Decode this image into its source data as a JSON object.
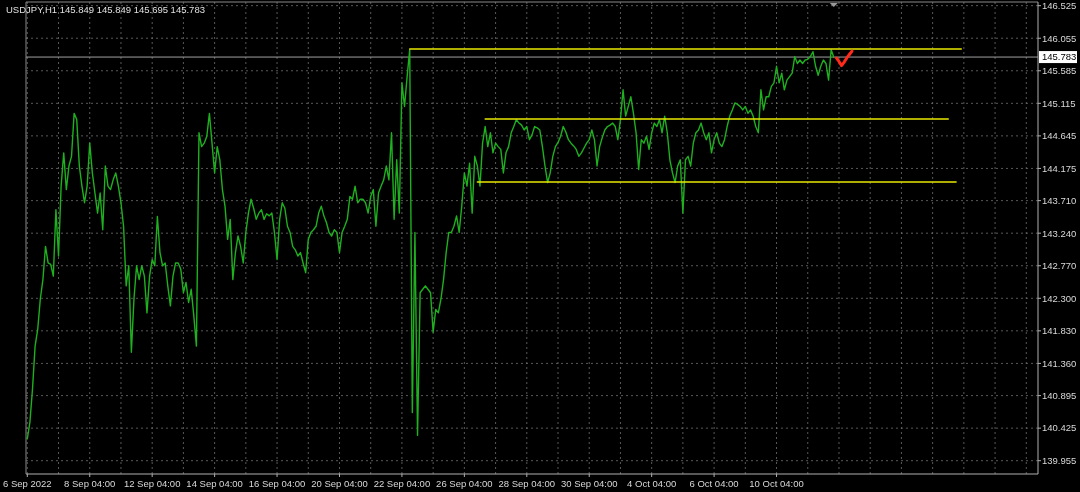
{
  "chart_data": {
    "type": "line",
    "title": "USDJPY,H1 145.849 145.849 145.695 145.783",
    "categories": [
      "6 Sep 2022",
      null,
      null,
      null,
      null,
      null,
      null,
      null,
      null,
      null,
      null,
      null,
      null,
      null,
      null,
      null,
      null,
      null,
      null,
      null,
      null,
      null,
      null,
      null,
      "8 Sep 04:00",
      null,
      null,
      null,
      null,
      null,
      null,
      null,
      null,
      null,
      null,
      null,
      null,
      null,
      null,
      null,
      null,
      null,
      null,
      null,
      null,
      null,
      null,
      null,
      "12 Sep 04:00",
      null,
      null,
      null,
      null,
      null,
      null,
      null,
      null,
      null,
      null,
      null,
      null,
      null,
      null,
      null,
      null,
      null,
      null,
      null,
      null,
      null,
      null,
      null,
      "14 Sep 04:00",
      null,
      null,
      null,
      null,
      null,
      null,
      null,
      null,
      null,
      null,
      null,
      null,
      null,
      null,
      null,
      null,
      null,
      null,
      null,
      null,
      null,
      null,
      null,
      "16 Sep 04:00",
      null,
      null,
      null,
      null,
      null,
      null,
      null,
      null,
      null,
      null,
      null,
      null,
      null,
      null,
      null,
      null,
      null,
      null,
      null,
      null,
      null,
      null,
      null,
      "20 Sep 04:00",
      null,
      null,
      null,
      null,
      null,
      null,
      null,
      null,
      null,
      null,
      null,
      null,
      null,
      null,
      null,
      null,
      null,
      null,
      null,
      null,
      null,
      null,
      null,
      "22 Sep 04:00",
      null,
      null,
      null,
      null,
      null,
      null,
      null,
      null,
      null,
      null,
      null,
      null,
      null,
      null,
      null,
      null,
      null,
      null,
      null,
      null,
      null,
      null,
      null,
      "26 Sep 04:00",
      null,
      null,
      null,
      null,
      null,
      null,
      null,
      null,
      null,
      null,
      null,
      null,
      null,
      null,
      null,
      null,
      null,
      null,
      null,
      null,
      null,
      null,
      null,
      "28 Sep 04:00",
      null,
      null,
      null,
      null,
      null,
      null,
      null,
      null,
      null,
      null,
      null,
      null,
      null,
      null,
      null,
      null,
      null,
      null,
      null,
      null,
      null,
      null,
      null,
      "30 Sep 04:00",
      null,
      null,
      null,
      null,
      null,
      null,
      null,
      null,
      null,
      null,
      null,
      null,
      null,
      null,
      null,
      null,
      null,
      null,
      null,
      null,
      null,
      null,
      null,
      "4 Oct 04:00",
      null,
      null,
      null,
      null,
      null,
      null,
      null,
      null,
      null,
      null,
      null,
      null,
      null,
      null,
      null,
      null,
      null,
      null,
      null,
      null,
      null,
      null,
      null,
      "6 Oct 04:00",
      null,
      null,
      null,
      null,
      null,
      null,
      null,
      null,
      null,
      null,
      null,
      null,
      null,
      null,
      null,
      null,
      null,
      null,
      null,
      null,
      null,
      null,
      null,
      "10 Oct 04:00",
      null,
      null,
      null,
      null,
      null,
      null,
      null,
      null,
      null,
      null,
      null,
      null,
      null,
      null,
      null,
      null,
      null,
      null,
      null,
      null,
      null,
      null,
      null,
      null,
      null,
      null,
      null,
      null,
      null,
      null,
      null,
      null,
      null,
      null,
      null,
      null,
      null,
      null,
      null,
      null,
      null,
      null,
      null,
      null,
      null,
      null,
      null,
      null,
      null,
      null,
      null,
      null,
      null,
      null,
      null,
      null,
      null,
      null,
      null,
      null,
      null,
      null,
      null,
      null,
      null,
      null,
      null,
      null,
      null,
      null,
      null,
      null,
      null,
      null,
      null,
      null,
      null,
      null,
      null,
      null,
      null,
      null,
      null,
      null,
      null,
      null,
      null,
      null,
      null,
      null,
      null,
      null,
      null,
      null,
      null,
      null,
      null,
      null,
      null,
      null
    ],
    "ylim": [
      139.763,
      146.578
    ],
    "yticks": [
      146.525,
      146.055,
      145.585,
      145.115,
      144.645,
      144.175,
      {
        "value": 143.71,
        "label": "143.710"
      },
      {
        "value": 143.24,
        "label": "143.240"
      },
      {
        "value": 142.77,
        "label": "142.770"
      },
      {
        "value": 142.3,
        "label": "142.300"
      },
      {
        "value": 141.83,
        "label": "141.830"
      },
      {
        "value": 141.36,
        "label": "141.360"
      },
      140.895,
      140.425,
      139.955
    ],
    "grid": true,
    "ref_lines": [
      {
        "axis": "y",
        "value": 145.783,
        "label": "145.783",
        "color": "#a0a0a0"
      }
    ],
    "series": [
      {
        "color": "#1fb01f",
        "values": [
          140.27,
          140.51,
          140.99,
          141.61,
          141.85,
          142.29,
          142.57,
          143.05,
          142.81,
          142.79,
          142.62,
          143.58,
          142.91,
          143.92,
          144.4,
          143.87,
          144.21,
          144.35,
          144.97,
          144.88,
          144.21,
          143.92,
          143.68,
          143.92,
          144.54,
          144.11,
          143.82,
          143.53,
          143.82,
          143.29,
          144.21,
          143.92,
          143.87,
          144.01,
          144.11,
          143.92,
          143.68,
          143.34,
          142.48,
          142.77,
          141.52,
          142.29,
          142.77,
          142.57,
          142.77,
          142.62,
          142.09,
          142.62,
          142.86,
          142.77,
          143.48,
          142.96,
          142.77,
          142.81,
          142.48,
          142.19,
          142.62,
          142.81,
          142.81,
          142.72,
          142.38,
          142.53,
          142.24,
          142.43,
          142.05,
          141.61,
          144.69,
          144.49,
          144.54,
          144.64,
          144.97,
          144.54,
          144.11,
          144.49,
          144.3,
          143.87,
          143.63,
          143.15,
          143.44,
          142.57,
          142.96,
          143.2,
          143.05,
          142.81,
          143.25,
          143.53,
          143.73,
          143.6,
          143.44,
          143.53,
          143.58,
          143.44,
          143.52,
          143.49,
          143.53,
          143.25,
          142.86,
          143.44,
          143.68,
          143.6,
          143.34,
          143.25,
          143.05,
          143.0,
          142.91,
          142.96,
          142.81,
          142.67,
          143.15,
          143.25,
          143.29,
          143.34,
          143.53,
          143.63,
          143.49,
          143.39,
          143.25,
          143.2,
          143.29,
          143.25,
          142.96,
          143.25,
          143.34,
          143.44,
          143.77,
          143.73,
          143.92,
          143.68,
          143.73,
          143.73,
          143.68,
          143.53,
          143.77,
          143.87,
          143.34,
          143.82,
          143.92,
          144.01,
          144.21,
          144.01,
          144.69,
          143.44,
          144.3,
          143.53,
          145.41,
          145.07,
          145.5,
          145.89,
          140.65,
          143.25,
          140.32,
          142.38,
          142.43,
          142.48,
          142.43,
          142.38,
          141.81,
          142.14,
          142.09,
          142.29,
          142.57,
          142.96,
          143.25,
          143.25,
          143.34,
          143.49,
          143.25,
          143.63,
          144.11,
          143.92,
          144.25,
          143.53,
          144.35,
          144.21,
          143.92,
          144.54,
          144.78,
          144.49,
          144.69,
          144.4,
          144.54,
          144.49,
          144.45,
          144.11,
          144.4,
          144.49,
          144.69,
          144.78,
          144.88,
          144.83,
          144.8,
          144.73,
          144.78,
          144.59,
          144.66,
          144.78,
          144.76,
          144.73,
          144.49,
          144.21,
          143.97,
          144.11,
          144.35,
          144.49,
          144.55,
          144.64,
          144.78,
          144.7,
          144.59,
          144.54,
          144.5,
          144.45,
          144.35,
          144.4,
          144.47,
          144.54,
          144.59,
          144.73,
          144.59,
          144.21,
          144.49,
          144.62,
          144.73,
          144.78,
          144.8,
          144.83,
          144.78,
          144.59,
          144.88,
          145.31,
          144.93,
          145.07,
          145.21,
          144.97,
          144.69,
          144.16,
          144.59,
          144.54,
          144.64,
          144.45,
          144.69,
          144.83,
          144.78,
          144.88,
          144.69,
          144.93,
          144.69,
          144.3,
          144.11,
          143.97,
          144.21,
          144.3,
          143.53,
          144.3,
          144.35,
          144.21,
          144.54,
          144.69,
          144.73,
          144.83,
          144.69,
          144.59,
          144.69,
          144.4,
          144.59,
          144.69,
          144.54,
          144.49,
          144.59,
          144.78,
          144.93,
          145.02,
          145.12,
          145.1,
          145.07,
          145.02,
          145.07,
          144.97,
          145.02,
          144.93,
          144.78,
          144.69,
          145.31,
          145.02,
          145.21,
          145.21,
          145.36,
          145.41,
          145.65,
          145.41,
          145.55,
          145.31,
          145.45,
          145.5,
          145.55,
          145.79,
          145.69,
          145.74,
          145.69,
          145.74,
          145.75,
          145.79,
          145.86,
          145.65,
          145.52,
          145.65,
          145.74,
          145.69,
          145.45,
          145.89,
          145.78,
          null,
          null,
          null,
          null,
          null,
          null,
          null,
          null,
          null,
          null,
          null,
          null,
          null,
          null,
          null,
          null,
          null,
          null,
          null,
          null,
          null,
          null,
          null,
          null,
          null,
          null,
          null,
          null,
          null,
          null,
          null,
          null,
          null,
          null,
          null,
          null,
          null,
          null,
          null,
          null,
          null,
          null,
          null,
          null,
          null,
          null,
          null,
          null,
          null,
          null,
          null,
          null,
          null,
          null,
          null,
          null,
          null,
          null,
          null,
          null,
          null,
          null,
          null,
          null,
          null,
          null,
          null,
          null,
          null,
          null,
          null,
          null,
          null,
          null,
          null,
          null,
          null,
          null
        ]
      },
      {
        "color": "#e8e800",
        "values": [
          null,
          null,
          null,
          null,
          null,
          null,
          null,
          null,
          null,
          null,
          null,
          null,
          null,
          null,
          null,
          null,
          null,
          null,
          null,
          null,
          null,
          null,
          null,
          null,
          null,
          null,
          null,
          null,
          null,
          null,
          null,
          null,
          null,
          null,
          null,
          null,
          null,
          null,
          null,
          null,
          null,
          null,
          null,
          null,
          null,
          null,
          null,
          null,
          null,
          null,
          null,
          null,
          null,
          null,
          null,
          null,
          null,
          null,
          null,
          null,
          null,
          null,
          null,
          null,
          null,
          null,
          null,
          null,
          null,
          null,
          null,
          null,
          null,
          null,
          null,
          null,
          null,
          null,
          null,
          null,
          null,
          null,
          null,
          null,
          null,
          null,
          null,
          null,
          null,
          null,
          null,
          null,
          null,
          null,
          null,
          null,
          null,
          null,
          null,
          null,
          null,
          null,
          null,
          null,
          null,
          null,
          null,
          null,
          null,
          null,
          null,
          null,
          null,
          null,
          null,
          null,
          null,
          null,
          null,
          null,
          null,
          null,
          null,
          null,
          null,
          null,
          null,
          null,
          null,
          null,
          null,
          null,
          null,
          null,
          null,
          null,
          null,
          null,
          null,
          null,
          null,
          null,
          null,
          null,
          null,
          null,
          null,
          145.9,
          145.9,
          145.9,
          145.9,
          145.9,
          145.9,
          145.9,
          145.9,
          145.9,
          145.9,
          145.9,
          145.9,
          145.9,
          145.9,
          145.9,
          145.9,
          145.9,
          145.9,
          145.9,
          145.9,
          145.9,
          145.9,
          145.9,
          145.9,
          145.9,
          145.9,
          145.9,
          145.9,
          145.9,
          145.9,
          145.9,
          145.9,
          145.9,
          145.9,
          145.9,
          145.9,
          145.9,
          145.9,
          145.9,
          145.9,
          145.9,
          145.9,
          145.9,
          145.9,
          145.9,
          145.9,
          145.9,
          145.9,
          145.9,
          145.9,
          145.9,
          145.9,
          145.9,
          145.9,
          145.9,
          145.9,
          145.9,
          145.9,
          145.9,
          145.9,
          145.9,
          145.9,
          145.9,
          145.9,
          145.9,
          145.9,
          145.9,
          145.9,
          145.9,
          145.9,
          145.9,
          145.9,
          145.9,
          145.9,
          145.9,
          145.9,
          145.9,
          145.9,
          145.9,
          145.9,
          145.9,
          145.9,
          145.9,
          145.9,
          145.9,
          145.9,
          145.9,
          145.9,
          145.9,
          145.9,
          145.9,
          145.9,
          145.9,
          145.9,
          145.9,
          145.9,
          145.9,
          145.9,
          145.9,
          145.9,
          145.9,
          145.9,
          145.9,
          145.9,
          145.9,
          145.9,
          145.9,
          145.9,
          145.9,
          145.9,
          145.9,
          145.9,
          145.9,
          145.9,
          145.9,
          145.9,
          145.9,
          145.9,
          145.9,
          145.9,
          145.9,
          145.9,
          145.9,
          145.9,
          145.9,
          145.9,
          145.9,
          145.9,
          145.9,
          145.9,
          145.9,
          145.9,
          145.9,
          145.9,
          145.9,
          145.9,
          145.9,
          145.9,
          145.9,
          145.9,
          145.9,
          145.9,
          145.9,
          145.9,
          145.9,
          145.9,
          145.9,
          145.9,
          145.9,
          145.9,
          145.9,
          145.9,
          145.9,
          145.9,
          145.9,
          145.9,
          145.9,
          145.9,
          145.9,
          145.9,
          145.9,
          145.9,
          145.9,
          145.9,
          145.9,
          145.9,
          145.9,
          145.9,
          145.9,
          145.9,
          145.9,
          145.9,
          145.9,
          145.9,
          145.9,
          145.9,
          145.9,
          145.9,
          145.9,
          145.9,
          145.9,
          145.9,
          145.9,
          145.9,
          145.9,
          145.9,
          145.9,
          145.9,
          145.9,
          145.9,
          145.9,
          145.9,
          145.9,
          145.9,
          145.9,
          145.9,
          145.9,
          145.9,
          145.9,
          145.9,
          145.9,
          145.9,
          145.9,
          145.9,
          145.9,
          145.9,
          145.9,
          145.9,
          145.9,
          145.9,
          145.9,
          145.9,
          145.9,
          null,
          null,
          null,
          null,
          null,
          null,
          null,
          null,
          null,
          null,
          null,
          null,
          null,
          null,
          null,
          null,
          null,
          null,
          null,
          null,
          null,
          null,
          null,
          null,
          null,
          null,
          null,
          null,
          null
        ]
      },
      {
        "color": "#e8e800",
        "values": [
          null,
          null,
          null,
          null,
          null,
          null,
          null,
          null,
          null,
          null,
          null,
          null,
          null,
          null,
          null,
          null,
          null,
          null,
          null,
          null,
          null,
          null,
          null,
          null,
          null,
          null,
          null,
          null,
          null,
          null,
          null,
          null,
          null,
          null,
          null,
          null,
          null,
          null,
          null,
          null,
          null,
          null,
          null,
          null,
          null,
          null,
          null,
          null,
          null,
          null,
          null,
          null,
          null,
          null,
          null,
          null,
          null,
          null,
          null,
          null,
          null,
          null,
          null,
          null,
          null,
          null,
          null,
          null,
          null,
          null,
          null,
          null,
          null,
          null,
          null,
          null,
          null,
          null,
          null,
          null,
          null,
          null,
          null,
          null,
          null,
          null,
          null,
          null,
          null,
          null,
          null,
          null,
          null,
          null,
          null,
          null,
          null,
          null,
          null,
          null,
          null,
          null,
          null,
          null,
          null,
          null,
          null,
          null,
          null,
          null,
          null,
          null,
          null,
          null,
          null,
          null,
          null,
          null,
          null,
          null,
          null,
          null,
          null,
          null,
          null,
          null,
          null,
          null,
          null,
          null,
          null,
          null,
          null,
          null,
          null,
          null,
          null,
          null,
          null,
          null,
          null,
          null,
          null,
          null,
          null,
          null,
          null,
          null,
          null,
          null,
          null,
          null,
          null,
          null,
          null,
          null,
          null,
          null,
          null,
          null,
          null,
          null,
          null,
          null,
          null,
          null,
          null,
          null,
          null,
          null,
          null,
          null,
          null,
          null,
          null,
          null,
          144.89,
          144.89,
          144.89,
          144.89,
          144.89,
          144.89,
          144.89,
          144.89,
          144.89,
          144.89,
          144.89,
          144.89,
          144.89,
          144.89,
          144.89,
          144.89,
          144.89,
          144.89,
          144.89,
          144.89,
          144.89,
          144.89,
          144.89,
          144.89,
          144.89,
          144.89,
          144.89,
          144.89,
          144.89,
          144.89,
          144.89,
          144.89,
          144.89,
          144.89,
          144.89,
          144.89,
          144.89,
          144.89,
          144.89,
          144.89,
          144.89,
          144.89,
          144.89,
          144.89,
          144.89,
          144.89,
          144.89,
          144.89,
          144.89,
          144.89,
          144.89,
          144.89,
          144.89,
          144.89,
          144.89,
          144.89,
          144.89,
          144.89,
          144.89,
          144.89,
          144.89,
          144.89,
          144.89,
          144.89,
          144.89,
          144.89,
          144.89,
          144.89,
          144.89,
          144.89,
          144.89,
          144.89,
          144.89,
          144.89,
          144.89,
          144.89,
          144.89,
          144.89,
          144.89,
          144.89,
          144.89,
          144.89,
          144.89,
          144.89,
          144.89,
          144.89,
          144.89,
          144.89,
          144.89,
          144.89,
          144.89,
          144.89,
          144.89,
          144.89,
          144.89,
          144.89,
          144.89,
          144.89,
          144.89,
          144.89,
          144.89,
          144.89,
          144.89,
          144.89,
          144.89,
          144.89,
          144.89,
          144.89,
          144.89,
          144.89,
          144.89,
          144.89,
          144.89,
          144.89,
          144.89,
          144.89,
          144.89,
          144.89,
          144.89,
          144.89,
          144.89,
          144.89,
          144.89,
          144.89,
          144.89,
          144.89,
          144.89,
          144.89,
          144.89,
          144.89,
          144.89,
          144.89,
          144.89,
          144.89,
          144.89,
          144.89,
          144.89,
          144.89,
          144.89,
          144.89,
          144.89,
          144.89,
          144.89,
          144.89,
          144.89,
          144.89,
          144.89,
          144.89,
          144.89,
          144.89,
          144.89,
          144.89,
          144.89,
          144.89,
          144.89,
          144.89,
          144.89,
          144.89,
          144.89,
          144.89,
          144.89,
          144.89,
          144.89,
          144.89,
          144.89,
          144.89,
          144.89,
          144.89,
          144.89,
          144.89,
          144.89,
          144.89,
          144.89,
          144.89,
          144.89,
          144.89,
          144.89,
          144.89,
          144.89,
          null,
          null,
          null,
          null,
          null,
          null,
          null,
          null,
          null,
          null,
          null,
          null,
          null,
          null,
          null,
          null,
          null,
          null,
          null,
          null,
          null,
          null,
          null,
          null,
          null,
          null,
          null,
          null,
          null,
          null,
          null,
          null,
          null,
          null
        ]
      },
      {
        "color": "#e8e800",
        "values": [
          null,
          null,
          null,
          null,
          null,
          null,
          null,
          null,
          null,
          null,
          null,
          null,
          null,
          null,
          null,
          null,
          null,
          null,
          null,
          null,
          null,
          null,
          null,
          null,
          null,
          null,
          null,
          null,
          null,
          null,
          null,
          null,
          null,
          null,
          null,
          null,
          null,
          null,
          null,
          null,
          null,
          null,
          null,
          null,
          null,
          null,
          null,
          null,
          null,
          null,
          null,
          null,
          null,
          null,
          null,
          null,
          null,
          null,
          null,
          null,
          null,
          null,
          null,
          null,
          null,
          null,
          null,
          null,
          null,
          null,
          null,
          null,
          null,
          null,
          null,
          null,
          null,
          null,
          null,
          null,
          null,
          null,
          null,
          null,
          null,
          null,
          null,
          null,
          null,
          null,
          null,
          null,
          null,
          null,
          null,
          null,
          null,
          null,
          null,
          null,
          null,
          null,
          null,
          null,
          null,
          null,
          null,
          null,
          null,
          null,
          null,
          null,
          null,
          null,
          null,
          null,
          null,
          null,
          null,
          null,
          null,
          null,
          null,
          null,
          null,
          null,
          null,
          null,
          null,
          null,
          null,
          null,
          null,
          null,
          null,
          null,
          null,
          null,
          null,
          null,
          null,
          null,
          null,
          null,
          null,
          null,
          null,
          null,
          null,
          null,
          null,
          null,
          null,
          null,
          null,
          null,
          null,
          null,
          null,
          null,
          null,
          null,
          null,
          null,
          null,
          null,
          null,
          null,
          null,
          null,
          null,
          null,
          null,
          143.98,
          143.98,
          143.98,
          143.98,
          143.98,
          143.98,
          143.98,
          143.98,
          143.98,
          143.98,
          143.98,
          143.98,
          143.98,
          143.98,
          143.98,
          143.98,
          143.98,
          143.98,
          143.98,
          143.98,
          143.98,
          143.98,
          143.98,
          143.98,
          143.98,
          143.98,
          143.98,
          143.98,
          143.98,
          143.98,
          143.98,
          143.98,
          143.98,
          143.98,
          143.98,
          143.98,
          143.98,
          143.98,
          143.98,
          143.98,
          143.98,
          143.98,
          143.98,
          143.98,
          143.98,
          143.98,
          143.98,
          143.98,
          143.98,
          143.98,
          143.98,
          143.98,
          143.98,
          143.98,
          143.98,
          143.98,
          143.98,
          143.98,
          143.98,
          143.98,
          143.98,
          143.98,
          143.98,
          143.98,
          143.98,
          143.98,
          143.98,
          143.98,
          143.98,
          143.98,
          143.98,
          143.98,
          143.98,
          143.98,
          143.98,
          143.98,
          143.98,
          143.98,
          143.98,
          143.98,
          143.98,
          143.98,
          143.98,
          143.98,
          143.98,
          143.98,
          143.98,
          143.98,
          143.98,
          143.98,
          143.98,
          143.98,
          143.98,
          143.98,
          143.98,
          143.98,
          143.98,
          143.98,
          143.98,
          143.98,
          143.98,
          143.98,
          143.98,
          143.98,
          143.98,
          143.98,
          143.98,
          143.98,
          143.98,
          143.98,
          143.98,
          143.98,
          143.98,
          143.98,
          143.98,
          143.98,
          143.98,
          143.98,
          143.98,
          143.98,
          143.98,
          143.98,
          143.98,
          143.98,
          143.98,
          143.98,
          143.98,
          143.98,
          143.98,
          143.98,
          143.98,
          143.98,
          143.98,
          143.98,
          143.98,
          143.98,
          143.98,
          143.98,
          143.98,
          143.98,
          143.98,
          143.98,
          143.98,
          143.98,
          143.98,
          143.98,
          143.98,
          143.98,
          143.98,
          143.98,
          143.98,
          143.98,
          143.98,
          143.98,
          143.98,
          143.98,
          143.98,
          143.98,
          143.98,
          143.98,
          143.98,
          143.98,
          143.98,
          143.98,
          143.98,
          143.98,
          143.98,
          143.98,
          143.98,
          143.98,
          143.98,
          143.98,
          143.98,
          143.98,
          143.98,
          143.98,
          143.98,
          143.98,
          143.98,
          143.98,
          143.98,
          143.98,
          143.98,
          143.98,
          143.98,
          null,
          null,
          null,
          null,
          null,
          null,
          null,
          null,
          null,
          null,
          null,
          null,
          null,
          null,
          null,
          null,
          null,
          null,
          null,
          null,
          null,
          null,
          null,
          null,
          null,
          null,
          null,
          null,
          null,
          null,
          null
        ]
      },
      {
        "color": "#ff2a1a",
        "values": [
          null,
          null,
          null,
          null,
          null,
          null,
          null,
          null,
          null,
          null,
          null,
          null,
          null,
          null,
          null,
          null,
          null,
          null,
          null,
          null,
          null,
          null,
          null,
          null,
          null,
          null,
          null,
          null,
          null,
          null,
          null,
          null,
          null,
          null,
          null,
          null,
          null,
          null,
          null,
          null,
          null,
          null,
          null,
          null,
          null,
          null,
          null,
          null,
          null,
          null,
          null,
          null,
          null,
          null,
          null,
          null,
          null,
          null,
          null,
          null,
          null,
          null,
          null,
          null,
          null,
          null,
          null,
          null,
          null,
          null,
          null,
          null,
          null,
          null,
          null,
          null,
          null,
          null,
          null,
          null,
          null,
          null,
          null,
          null,
          null,
          null,
          null,
          null,
          null,
          null,
          null,
          null,
          null,
          null,
          null,
          null,
          null,
          null,
          null,
          null,
          null,
          null,
          null,
          null,
          null,
          null,
          null,
          null,
          null,
          null,
          null,
          null,
          null,
          null,
          null,
          null,
          null,
          null,
          null,
          null,
          null,
          null,
          null,
          null,
          null,
          null,
          null,
          null,
          null,
          null,
          null,
          null,
          null,
          null,
          null,
          null,
          null,
          null,
          null,
          null,
          null,
          null,
          null,
          null,
          null,
          null,
          null,
          null,
          null,
          null,
          null,
          null,
          null,
          null,
          null,
          null,
          null,
          null,
          null,
          null,
          null,
          null,
          null,
          null,
          null,
          null,
          null,
          null,
          null,
          null,
          null,
          null,
          null,
          null,
          null,
          null,
          null,
          null,
          null,
          null,
          null,
          null,
          null,
          null,
          null,
          null,
          null,
          null,
          null,
          null,
          null,
          null,
          null,
          null,
          null,
          null,
          null,
          null,
          null,
          null,
          null,
          null,
          null,
          null,
          null,
          null,
          null,
          null,
          null,
          null,
          null,
          null,
          null,
          null,
          null,
          null,
          null,
          null,
          null,
          null,
          null,
          null,
          null,
          null,
          null,
          null,
          null,
          null,
          null,
          null,
          null,
          null,
          null,
          null,
          null,
          null,
          null,
          null,
          null,
          null,
          null,
          null,
          null,
          null,
          null,
          null,
          null,
          null,
          null,
          null,
          null,
          null,
          null,
          null,
          null,
          null,
          null,
          null,
          null,
          null,
          null,
          null,
          null,
          null,
          null,
          null,
          null,
          null,
          null,
          null,
          null,
          null,
          null,
          null,
          null,
          null,
          null,
          null,
          null,
          null,
          null,
          null,
          null,
          null,
          null,
          null,
          null,
          null,
          null,
          null,
          null,
          null,
          null,
          null,
          null,
          null,
          null,
          null,
          null,
          null,
          null,
          null,
          null,
          null,
          null,
          null,
          null,
          null,
          null,
          null,
          null,
          145.77,
          145.72,
          145.66,
          145.71,
          145.77,
          145.82,
          145.87,
          null,
          null,
          null,
          null,
          null,
          null,
          null,
          null,
          null,
          null,
          null,
          null,
          null,
          null,
          null,
          null,
          null,
          null,
          null,
          null,
          null,
          null,
          null,
          null,
          null,
          null,
          null,
          null,
          null,
          null,
          null,
          null,
          null,
          null,
          null,
          null,
          null,
          null,
          null,
          null,
          null,
          null,
          null,
          null,
          null,
          null,
          null,
          null,
          null,
          null,
          null,
          null,
          null,
          null,
          null,
          null,
          null,
          null,
          null,
          null,
          null,
          null,
          null,
          null,
          null,
          null,
          null,
          null,
          null,
          null,
          null
        ]
      }
    ]
  }
}
